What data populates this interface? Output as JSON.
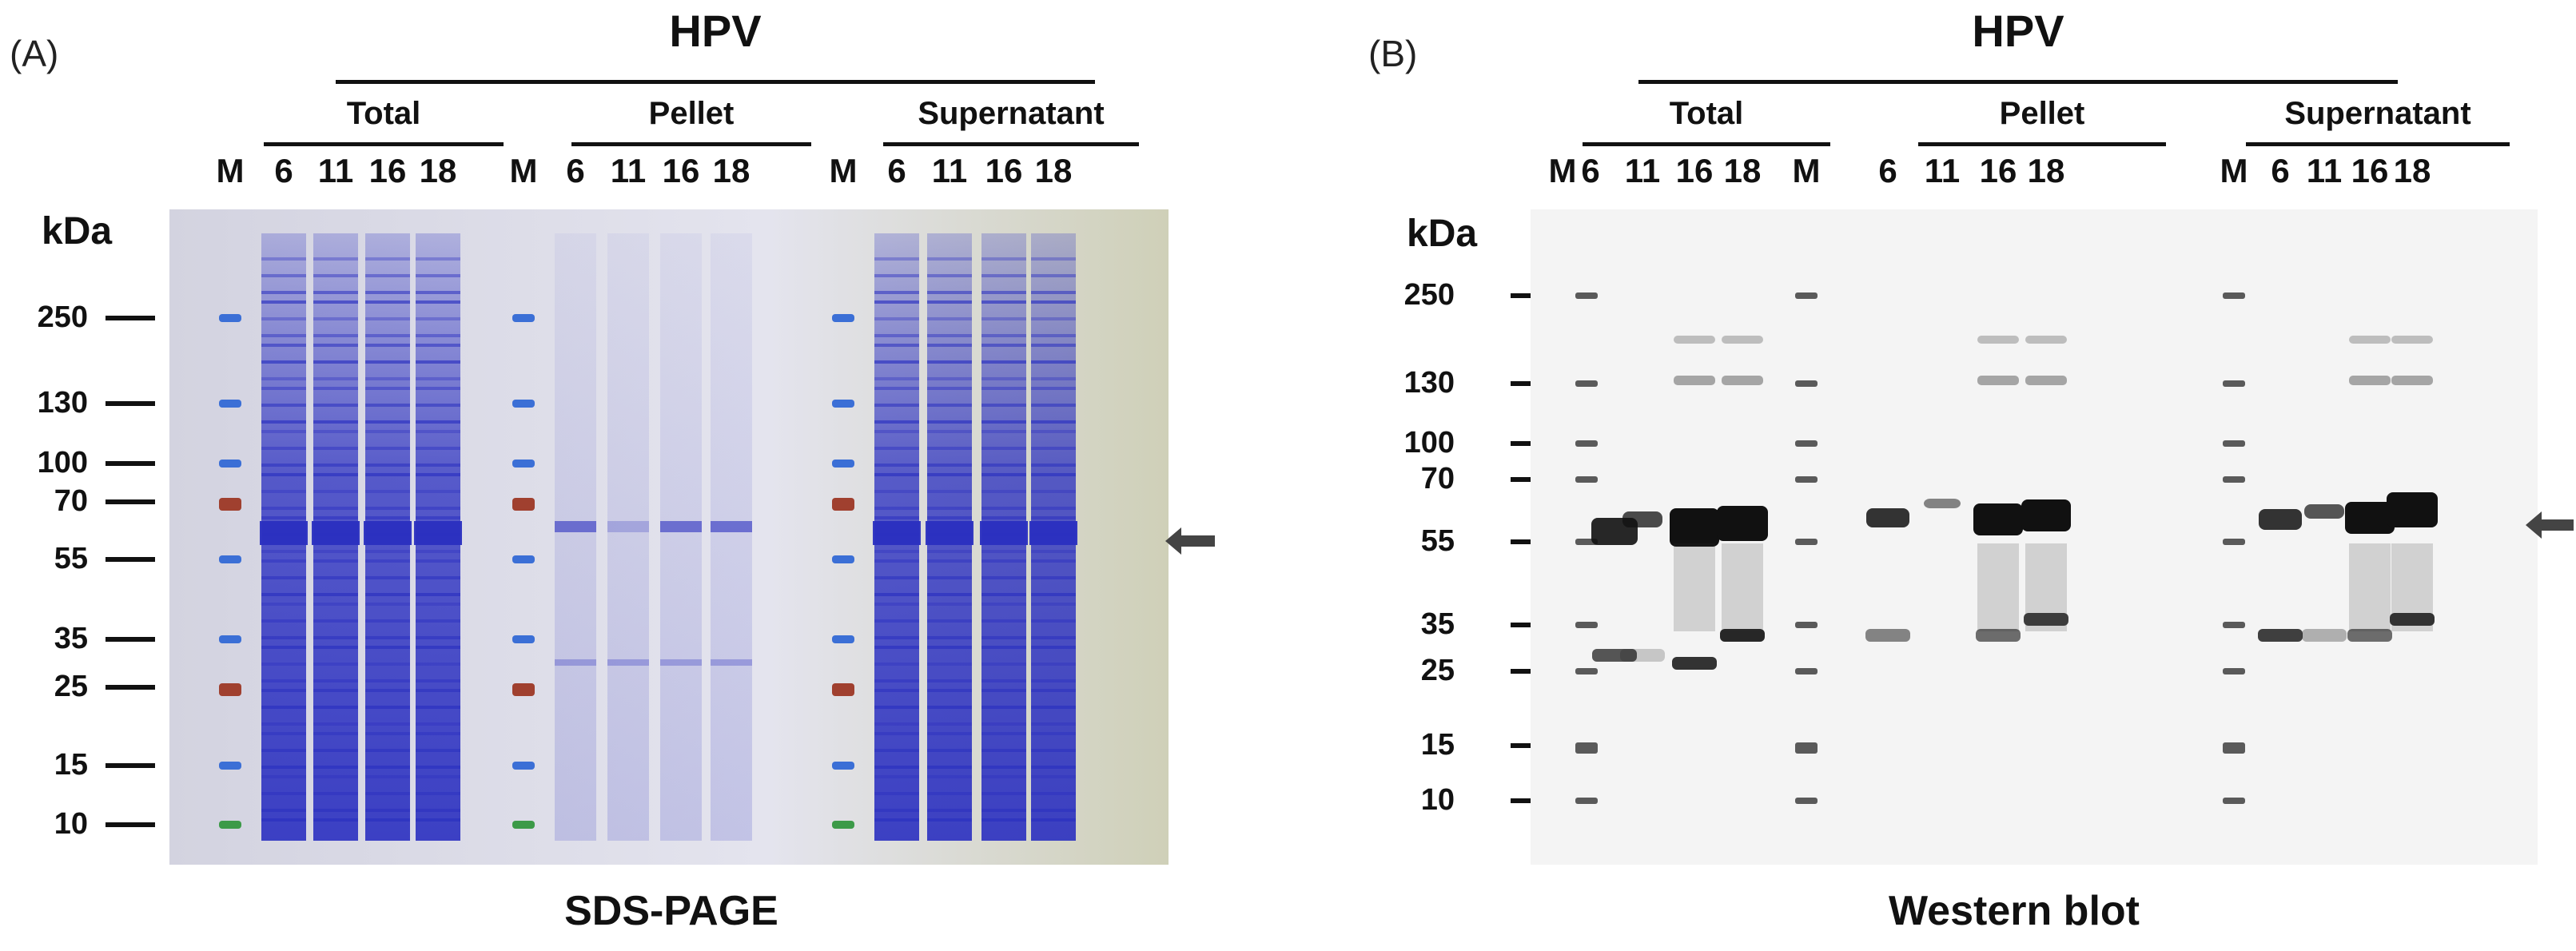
{
  "panels": [
    {
      "id": "A",
      "letter": "(A)",
      "title": "HPV",
      "groups": [
        "Total",
        "Pellet",
        "Supernatant"
      ],
      "lanes": [
        "M",
        "6",
        "11",
        "16",
        "18",
        "M",
        "6",
        "11",
        "16",
        "18",
        "M",
        "6",
        "11",
        "16",
        "18"
      ],
      "unit": "kDa",
      "markers": [
        "250",
        "130",
        "100",
        "70",
        "55",
        "35",
        "25",
        "15",
        "10"
      ],
      "caption": "SDS-PAGE"
    },
    {
      "id": "B",
      "letter": "(B)",
      "title": "HPV",
      "groups": [
        "Total",
        "Pellet",
        "Supernatant"
      ],
      "lanes": [
        "M",
        "6",
        "11",
        "16",
        "18",
        "M",
        "6",
        "11",
        "16",
        "18",
        "M",
        "6",
        "11",
        "16",
        "18"
      ],
      "unit": "kDa",
      "markers": [
        "250",
        "130",
        "100",
        "70",
        "55",
        "35",
        "25",
        "15",
        "10"
      ],
      "caption": "Western blot"
    }
  ],
  "colors": {
    "gel_background": "#d9d9e6",
    "coomassie": "#2a2fc0",
    "marker_blue": "#3b6fd6",
    "marker_red": "#a0402f",
    "marker_green": "#3c9a48",
    "blot_background": "#f4f4f4",
    "blot_band": "#111111",
    "arrow": "#444444"
  },
  "icons": {
    "band_arrow": "left-arrow-icon"
  }
}
